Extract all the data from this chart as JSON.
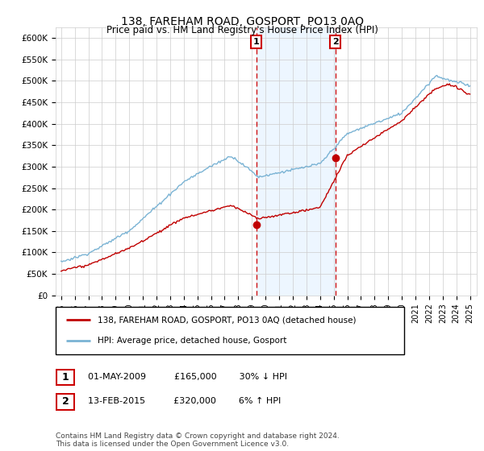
{
  "title": "138, FAREHAM ROAD, GOSPORT, PO13 0AQ",
  "subtitle": "Price paid vs. HM Land Registry's House Price Index (HPI)",
  "ytick_values": [
    0,
    50000,
    100000,
    150000,
    200000,
    250000,
    300000,
    350000,
    400000,
    450000,
    500000,
    550000,
    600000
  ],
  "ylabel_ticks": [
    "£0",
    "£50K",
    "£100K",
    "£150K",
    "£200K",
    "£250K",
    "£300K",
    "£350K",
    "£400K",
    "£450K",
    "£500K",
    "£550K",
    "£600K"
  ],
  "ylim": [
    0,
    625000
  ],
  "xlim_min": 1994.6,
  "xlim_max": 2025.5,
  "transaction1": {
    "date": "01-MAY-2009",
    "price": 165000,
    "label": "1",
    "year": 2009.33,
    "hpi_arrow": "↓",
    "hpi_pct": "30%"
  },
  "transaction2": {
    "date": "13-FEB-2015",
    "price": 320000,
    "label": "2",
    "year": 2015.12,
    "hpi_arrow": "↑",
    "hpi_pct": "6%"
  },
  "legend_line1": "138, FAREHAM ROAD, GOSPORT, PO13 0AQ (detached house)",
  "legend_line2": "HPI: Average price, detached house, Gosport",
  "footnote1": "Contains HM Land Registry data © Crown copyright and database right 2024.",
  "footnote2": "This data is licensed under the Open Government Licence v3.0.",
  "hpi_color": "#7ab3d4",
  "price_color": "#c00000",
  "dot_color": "#c00000",
  "shaded_color": "#ddeeff",
  "vline_color": "#cc0000",
  "grid_color": "#cccccc",
  "background_color": "#ffffff",
  "label_box_color": "#cc0000"
}
